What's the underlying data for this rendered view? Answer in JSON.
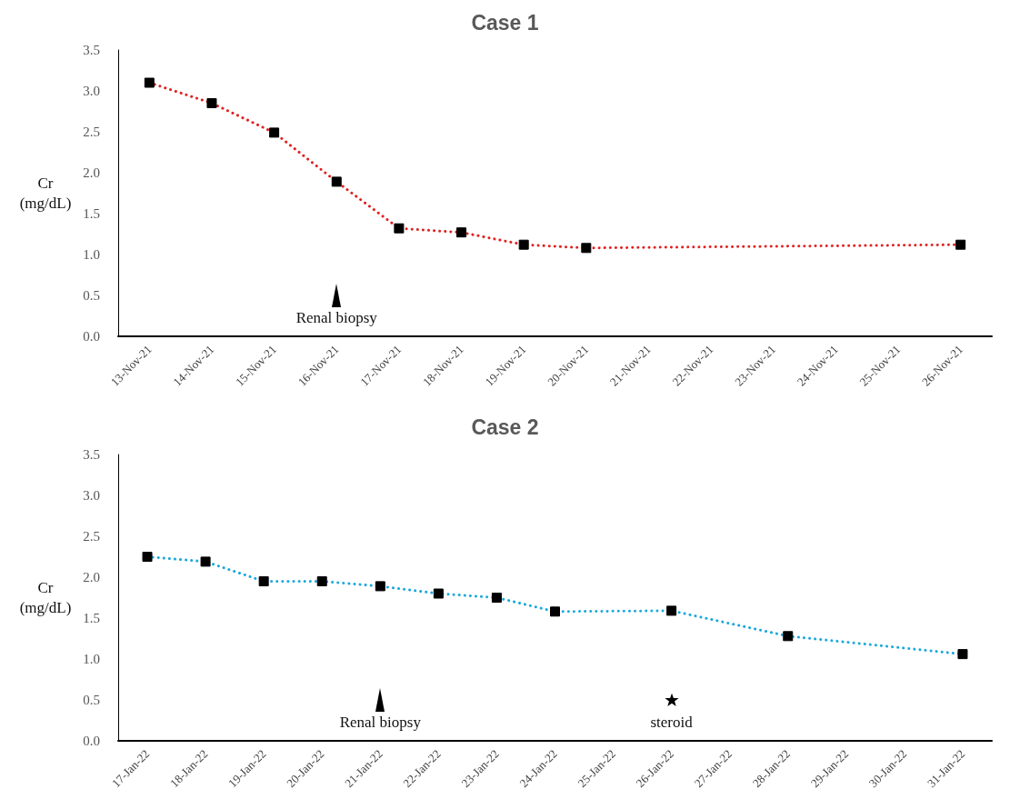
{
  "chart_data": [
    {
      "type": "line",
      "title": "Case 1",
      "ylabel": "Cr\n(mg/dL)",
      "categories": [
        "13-Nov-21",
        "14-Nov-21",
        "15-Nov-21",
        "16-Nov-21",
        "17-Nov-21",
        "18-Nov-21",
        "19-Nov-21",
        "20-Nov-21",
        "21-Nov-21",
        "22-Nov-21",
        "23-Nov-21",
        "24-Nov-21",
        "25-Nov-21",
        "26-Nov-21"
      ],
      "series": [
        {
          "color": "#e02020",
          "values": [
            3.1,
            2.85,
            2.49,
            1.89,
            1.32,
            1.27,
            1.12,
            1.08,
            null,
            null,
            null,
            null,
            null,
            1.12
          ]
        }
      ],
      "ylim": [
        0,
        3.5
      ],
      "yticks": [
        {
          "value": 0,
          "label": "0.0"
        },
        0.5,
        {
          "value": 1,
          "label": "1.0"
        },
        1.5,
        {
          "value": 2,
          "label": "2.0"
        },
        2.5,
        {
          "value": 3,
          "label": "3.0"
        },
        3.5
      ],
      "annotations": [
        {
          "text": "Renal biopsy",
          "x": "16-Nov-21",
          "y": 0.5
        }
      ],
      "grid": false,
      "marker": "square",
      "line_style": "dotted"
    },
    {
      "type": "line",
      "title": "Case 2",
      "ylabel": "Cr\n(mg/dL)",
      "categories": [
        "17-Jan-22",
        "18-Jan-22",
        "19-Jan-22",
        "20-Jan-22",
        "21-Jan-22",
        "22-Jan-22",
        "23-Jan-22",
        "24-Jan-22",
        "25-Jan-22",
        "26-Jan-22",
        "27-Jan-22",
        "28-Jan-22",
        "29-Jan-22",
        "30-Jan-22",
        "31-Jan-22"
      ],
      "series": [
        {
          "color": "#1ca8dd",
          "values": [
            2.25,
            2.19,
            1.95,
            1.95,
            1.89,
            1.8,
            1.75,
            1.58,
            null,
            1.59,
            null,
            1.28,
            null,
            null,
            1.06
          ]
        }
      ],
      "ylim": [
        0,
        3.5
      ],
      "yticks": [
        {
          "value": 0,
          "label": "0.0"
        },
        0.5,
        {
          "value": 1,
          "label": "1.0"
        },
        1.5,
        {
          "value": 2,
          "label": "2.0"
        },
        2.5,
        {
          "value": 3,
          "label": "3.0"
        },
        3.5
      ],
      "annotations": [
        {
          "text": "Renal biopsy",
          "x": "21-Jan-22",
          "y": 0.5
        },
        {
          "text": "steroid",
          "x": "26-Jan-22",
          "y": 0.5
        }
      ],
      "grid": false,
      "marker": "square",
      "line_style": "dotted"
    }
  ]
}
